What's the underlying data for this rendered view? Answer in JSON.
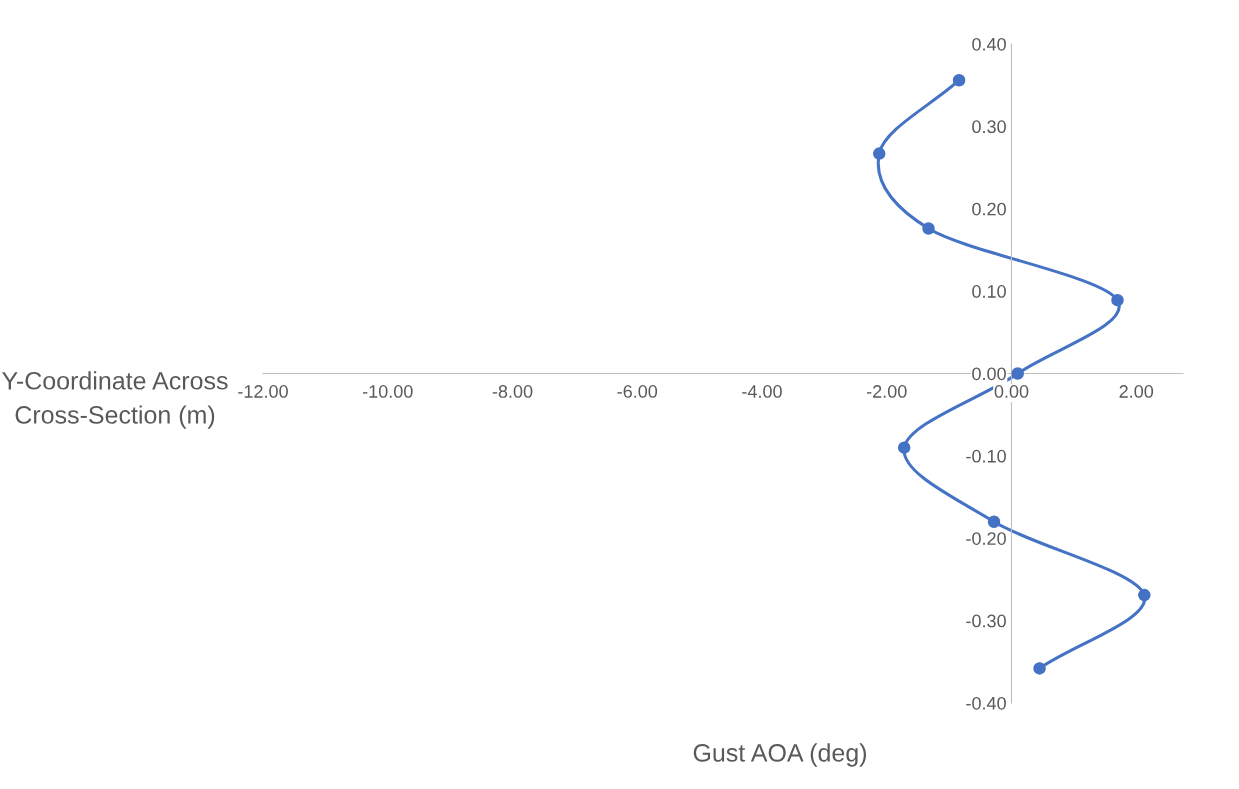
{
  "chart_data": {
    "type": "line",
    "xlabel": "Gust AOA (deg)",
    "ylabel": "Y-Coordinate Across Cross-Section (m)",
    "series": [
      {
        "color": "#4472c4",
        "x": [
          -0.84,
          -2.12,
          -1.33,
          1.7,
          0.1,
          -1.72,
          -0.28,
          2.13,
          0.45
        ],
        "values": [
          0.356,
          0.267,
          0.176,
          0.089,
          0.0,
          -0.09,
          -0.18,
          -0.269,
          -0.358
        ]
      }
    ],
    "marker": "circle",
    "grid": false,
    "xlim": [
      -12,
      2.75
    ],
    "xticks": [
      {
        "value": -12,
        "label": "-12.00"
      },
      {
        "value": -10,
        "label": "-10.00"
      },
      {
        "value": -8,
        "label": "-8.00"
      },
      {
        "value": -6,
        "label": "-6.00"
      },
      {
        "value": -4,
        "label": "-4.00"
      },
      {
        "value": -2,
        "label": "-2.00"
      },
      {
        "value": 0,
        "label": "0.00"
      },
      {
        "value": 2,
        "label": "2.00"
      }
    ],
    "ylim": [
      -0.4,
      0.4
    ],
    "yticks": [
      {
        "value": -0.4,
        "label": "-0.40"
      },
      {
        "value": -0.3,
        "label": "-0.30"
      },
      {
        "value": -0.2,
        "label": "-0.20"
      },
      {
        "value": -0.1,
        "label": "-0.10"
      },
      {
        "value": 0,
        "label": "0.00"
      },
      {
        "value": 0.1,
        "label": "0.10"
      },
      {
        "value": 0.2,
        "label": "0.20"
      },
      {
        "value": 0.3,
        "label": "0.30"
      },
      {
        "value": 0.4,
        "label": "0.40"
      }
    ]
  }
}
